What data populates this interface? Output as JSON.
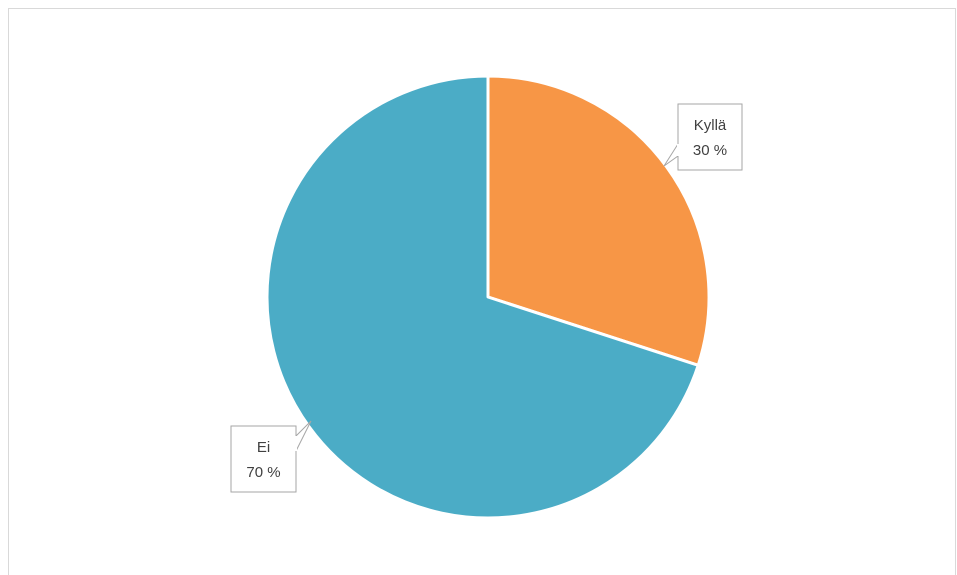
{
  "chart_data": {
    "type": "pie",
    "title": "",
    "slices": [
      {
        "label": "Kyllä",
        "value": 30,
        "value_label": "30 %",
        "color": "#F79646"
      },
      {
        "label": "Ei",
        "value": 70,
        "value_label": "70 %",
        "color": "#4BACC6"
      }
    ],
    "legend": "none",
    "slice_border_color": "#FFFFFF"
  }
}
